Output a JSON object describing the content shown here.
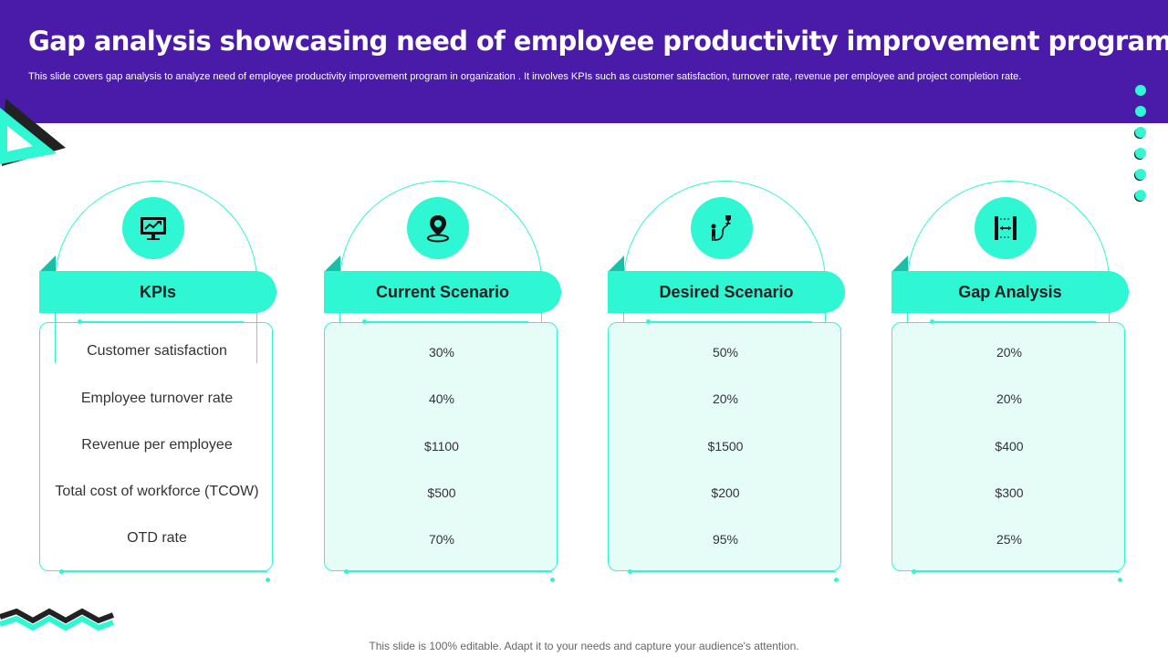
{
  "header": {
    "title": "Gap analysis showcasing need of employee productivity improvement program",
    "subtitle": "This slide covers gap analysis to analyze  need of employee productivity improvement program in organization . It involves KPIs such as customer satisfaction, turnover rate, revenue per employee and project completion rate."
  },
  "colors": {
    "header_bg": "#4a1aa8",
    "accent": "#2ff7d4",
    "card_tint": "#e6fcf7"
  },
  "columns": [
    {
      "heading": "KPIs",
      "icon": "monitor-chart-icon",
      "rows": [
        "Customer satisfaction",
        "Employee turnover  rate",
        "Revenue  per employee",
        "Total cost of workforce (TCOW)",
        "OTD rate"
      ]
    },
    {
      "heading": "Current Scenario",
      "icon": "location-pin-icon",
      "rows": [
        "30%",
        "40%",
        "$1100",
        "$500",
        "70%"
      ]
    },
    {
      "heading": "Desired Scenario",
      "icon": "person-path-trophy-icon",
      "rows": [
        "50%",
        "20%",
        "$1500",
        "$200",
        "95%"
      ]
    },
    {
      "heading": "Gap Analysis",
      "icon": "gap-measure-icon",
      "rows": [
        "20%",
        "20%",
        "$400",
        "$300",
        "25%"
      ]
    }
  ],
  "footer": "This slide is 100% editable. Adapt it to your needs and capture your audience's attention."
}
